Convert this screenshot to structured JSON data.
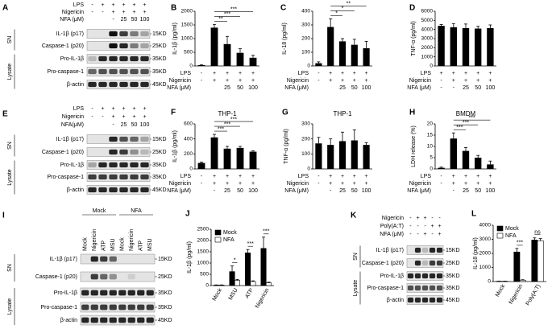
{
  "chart_data": [
    {
      "type": "bar",
      "panel": "B",
      "y_label": "IL-1β (pg/ml)",
      "values": [
        30,
        1400,
        800,
        480,
        300
      ],
      "errors": [
        10,
        120,
        280,
        150,
        90
      ],
      "color": "#000000",
      "ylim": [
        0,
        2000
      ],
      "yticks": [
        0,
        500,
        1000,
        1500,
        2000
      ],
      "significance": [
        "**",
        "***",
        "***"
      ],
      "treatments": [
        {
          "label": "LPS",
          "marks": [
            "-",
            "+",
            "+",
            "+",
            "+"
          ]
        },
        {
          "label": "Nigericin",
          "marks": [
            "-",
            "+",
            "+",
            "+",
            "+"
          ]
        },
        {
          "label": "NFA (μM)",
          "marks": [
            null,
            null,
            "25",
            "50",
            "100"
          ]
        }
      ]
    },
    {
      "type": "bar",
      "panel": "C",
      "y_label": "IL-18 (pg/ml)",
      "values": [
        20,
        285,
        180,
        155,
        130
      ],
      "errors": [
        10,
        60,
        20,
        40,
        50
      ],
      "color": "#000000",
      "ylim": [
        0,
        400
      ],
      "yticks": [
        0,
        100,
        200,
        300,
        400
      ],
      "significance": [
        "*",
        "*",
        "**"
      ],
      "treatments": [
        {
          "label": "LPS",
          "marks": [
            "-",
            "+",
            "+",
            "+",
            "+"
          ]
        },
        {
          "label": "Nigericin",
          "marks": [
            "-",
            "+",
            "+",
            "+",
            "+"
          ]
        },
        {
          "label": "NFA (μM)",
          "marks": [
            null,
            null,
            "25",
            "50",
            "100"
          ]
        }
      ]
    },
    {
      "type": "bar",
      "panel": "D",
      "y_label": "TNF-α (pg/ml)",
      "values": [
        4400,
        4250,
        4150,
        4100,
        4150
      ],
      "errors": [
        150,
        400,
        450,
        250,
        350
      ],
      "color": "#000000",
      "ylim": [
        0,
        6000
      ],
      "yticks": [
        0,
        1000,
        2000,
        3000,
        4000,
        5000,
        6000
      ],
      "treatments": [
        {
          "label": "LPS",
          "marks": [
            "+",
            "+",
            "+",
            "+",
            "+"
          ]
        },
        {
          "label": "Nigericin",
          "marks": [
            "-",
            "+",
            "+",
            "+",
            "+"
          ]
        },
        {
          "label": "NFA (μM)",
          "marks": [
            "-",
            "-",
            "25",
            "50",
            "100"
          ]
        }
      ]
    },
    {
      "type": "bar",
      "panel": "F",
      "title": "THP-1",
      "y_label": "IL-1β (pg/ml)",
      "values": [
        80,
        420,
        270,
        280,
        230
      ],
      "errors": [
        10,
        40,
        30,
        20,
        10
      ],
      "color": "#000000",
      "ylim": [
        0,
        600
      ],
      "yticks": [
        0,
        200,
        400,
        600
      ],
      "significance": [
        "***",
        "***",
        "***"
      ],
      "treatments": [
        {
          "label": "LPS",
          "marks": [
            "-",
            "+",
            "+",
            "+",
            "+"
          ]
        },
        {
          "label": "Nigericin",
          "marks": [
            "-",
            "+",
            "+",
            "+",
            "+"
          ]
        },
        {
          "label": "NFA (μM)",
          "marks": [
            null,
            "-",
            "25",
            "50",
            "100"
          ]
        }
      ]
    },
    {
      "type": "bar",
      "panel": "G",
      "title": "THP-1",
      "y_label": "TNF-α (pg/ml)",
      "values": [
        170,
        160,
        185,
        190,
        160
      ],
      "errors": [
        40,
        40,
        60,
        70,
        15
      ],
      "color": "#000000",
      "ylim": [
        0,
        300
      ],
      "yticks": [
        0,
        100,
        200,
        300
      ],
      "treatments": [
        {
          "label": "LPS",
          "marks": [
            "-",
            "+",
            "+",
            "+",
            "+"
          ]
        },
        {
          "label": "Nigericin",
          "marks": [
            "-",
            "+",
            "+",
            "+",
            "+"
          ]
        },
        {
          "label": "NFA (μM)",
          "marks": [
            null,
            "-",
            "25",
            "50",
            "100"
          ]
        }
      ]
    },
    {
      "type": "bar",
      "panel": "H",
      "title": "BMDM",
      "y_label": "LDH release (%)",
      "values": [
        0.5,
        13.5,
        8,
        5,
        2
      ],
      "errors": [
        0.3,
        2.5,
        1.5,
        1,
        1.5
      ],
      "color": "#000000",
      "ylim": [
        0,
        20
      ],
      "yticks": [
        0,
        5,
        10,
        15,
        20
      ],
      "significance": [
        "***",
        "***",
        "***"
      ],
      "treatments": [
        {
          "label": "LPS",
          "marks": [
            "-",
            "+",
            "+",
            "+",
            "+"
          ]
        },
        {
          "label": "Nigericin",
          "marks": [
            "-",
            "+",
            "+",
            "+",
            "+"
          ]
        },
        {
          "label": "NFA (μM)",
          "marks": [
            null,
            "-",
            "25",
            "50",
            "100"
          ]
        }
      ]
    },
    {
      "type": "bar",
      "panel": "J",
      "y_label": "IL-1β (pg/ml)",
      "categories": [
        "Mock",
        "MSU",
        "ATP",
        "Nigericin"
      ],
      "ylim": [
        0,
        2500
      ],
      "yticks": [
        0,
        500,
        1000,
        1500,
        2000,
        2500
      ],
      "significance": [
        "*",
        "***",
        "***"
      ],
      "series": [
        {
          "name": "Mock",
          "color": "#000000",
          "values": [
            20,
            620,
            1450,
            1650
          ],
          "errors": [
            10,
            250,
            150,
            500
          ]
        },
        {
          "name": "NFA",
          "color": "#ffffff",
          "values": [
            20,
            230,
            180,
            120
          ],
          "errors": [
            10,
            40,
            30,
            30
          ]
        }
      ]
    },
    {
      "type": "bar",
      "panel": "L",
      "y_label": "IL-18 (pg/ml)",
      "categories": [
        "Mock",
        "Nigericin",
        "Poly(A:T)"
      ],
      "ylim": [
        0,
        4000
      ],
      "yticks": [
        0,
        1000,
        2000,
        3000,
        4000
      ],
      "significance": [
        "***",
        "ns"
      ],
      "series": [
        {
          "name": "Mock",
          "color": "#000000",
          "values": [
            20,
            2100,
            2950
          ],
          "errors": [
            10,
            250,
            150
          ]
        },
        {
          "name": "NFA",
          "color": "#ffffff",
          "values": [
            20,
            100,
            2900
          ],
          "errors": [
            10,
            30,
            150
          ]
        }
      ]
    }
  ],
  "blots": [
    {
      "panel": "A",
      "treatments": [
        {
          "label": "LPS",
          "marks": [
            "-",
            "+",
            "+",
            "+",
            "+",
            "+"
          ]
        },
        {
          "label": "Nigericin",
          "marks": [
            "-",
            "-",
            "+",
            "+",
            "+",
            "+"
          ]
        },
        {
          "label": "NFA (μM)",
          "marks": [
            null,
            null,
            "-",
            "25",
            "50",
            "100"
          ]
        }
      ],
      "sections": [
        "SN",
        "Lysate"
      ],
      "bands": [
        {
          "label": "IL-1β (p17)",
          "size": "15KD"
        },
        {
          "label": "Caspase-1 (p20)",
          "size": "25KD"
        },
        {
          "label": "Pro-IL-1β",
          "size": "35KD"
        },
        {
          "label": "Pro-caspase-1",
          "size": "35KD"
        },
        {
          "label": "β-actin",
          "size": "45KD"
        }
      ]
    },
    {
      "panel": "E",
      "treatments": [
        {
          "label": "LPS",
          "marks": [
            "-",
            "+",
            "+",
            "+",
            "+",
            "+"
          ]
        },
        {
          "label": "Nigericin",
          "marks": [
            "-",
            "-",
            "+",
            "+",
            "+",
            "+"
          ]
        },
        {
          "label": "NFA(μM)",
          "marks": [
            null,
            null,
            "-",
            "25",
            "50",
            "100"
          ]
        }
      ],
      "sections": [
        "SN",
        "Lysate"
      ],
      "bands": [
        {
          "label": "IL-1β (p17)",
          "size": "15KD"
        },
        {
          "label": "Caspase-1 (p20)",
          "size": "25KD"
        },
        {
          "label": "Pro-IL-1β",
          "size": "35KD"
        },
        {
          "label": "Pro-caspase-1",
          "size": "35KD"
        },
        {
          "label": "β-actin",
          "size": "45KD"
        }
      ]
    },
    {
      "panel": "I",
      "groups": [
        "Mock",
        "NFA"
      ],
      "lanes": [
        "Mock",
        "Nigericin",
        "ATP",
        "MSU",
        "Mock",
        "Nigericin",
        "ATP",
        "MSU"
      ],
      "sections": [
        "SN",
        "Lysate"
      ],
      "bands": [
        {
          "label": "IL-1β (p17)",
          "size": "15KD"
        },
        {
          "label": "Caspase-1 (p20)",
          "size": "25KD"
        },
        {
          "label": "Pro-IL-1β",
          "size": "35KD"
        },
        {
          "label": "Pro-caspase-1",
          "size": "35KD"
        },
        {
          "label": "β-actin",
          "size": "45KD"
        }
      ]
    },
    {
      "panel": "K",
      "treatments": [
        {
          "label": "Nigericin",
          "marks": [
            "-",
            "+",
            "+",
            "-",
            "-"
          ]
        },
        {
          "label": "Poly(A:T)",
          "marks": [
            "-",
            "-",
            "-",
            "+",
            "+"
          ]
        },
        {
          "label": "NFA (μM)",
          "marks": [
            "-",
            "-",
            "+",
            "-",
            "+"
          ]
        }
      ],
      "sections": [
        "SN",
        "Lysate"
      ],
      "bands": [
        {
          "label": "IL-1β (p17)",
          "size": "15KD"
        },
        {
          "label": "Caspase-1 (p20)",
          "size": "25KD"
        },
        {
          "label": "Pro-IL-1β",
          "size": "35KD"
        },
        {
          "label": "Pro-caspase-1",
          "size": "35KD"
        },
        {
          "label": "β-actin",
          "size": "45KD"
        }
      ]
    }
  ]
}
